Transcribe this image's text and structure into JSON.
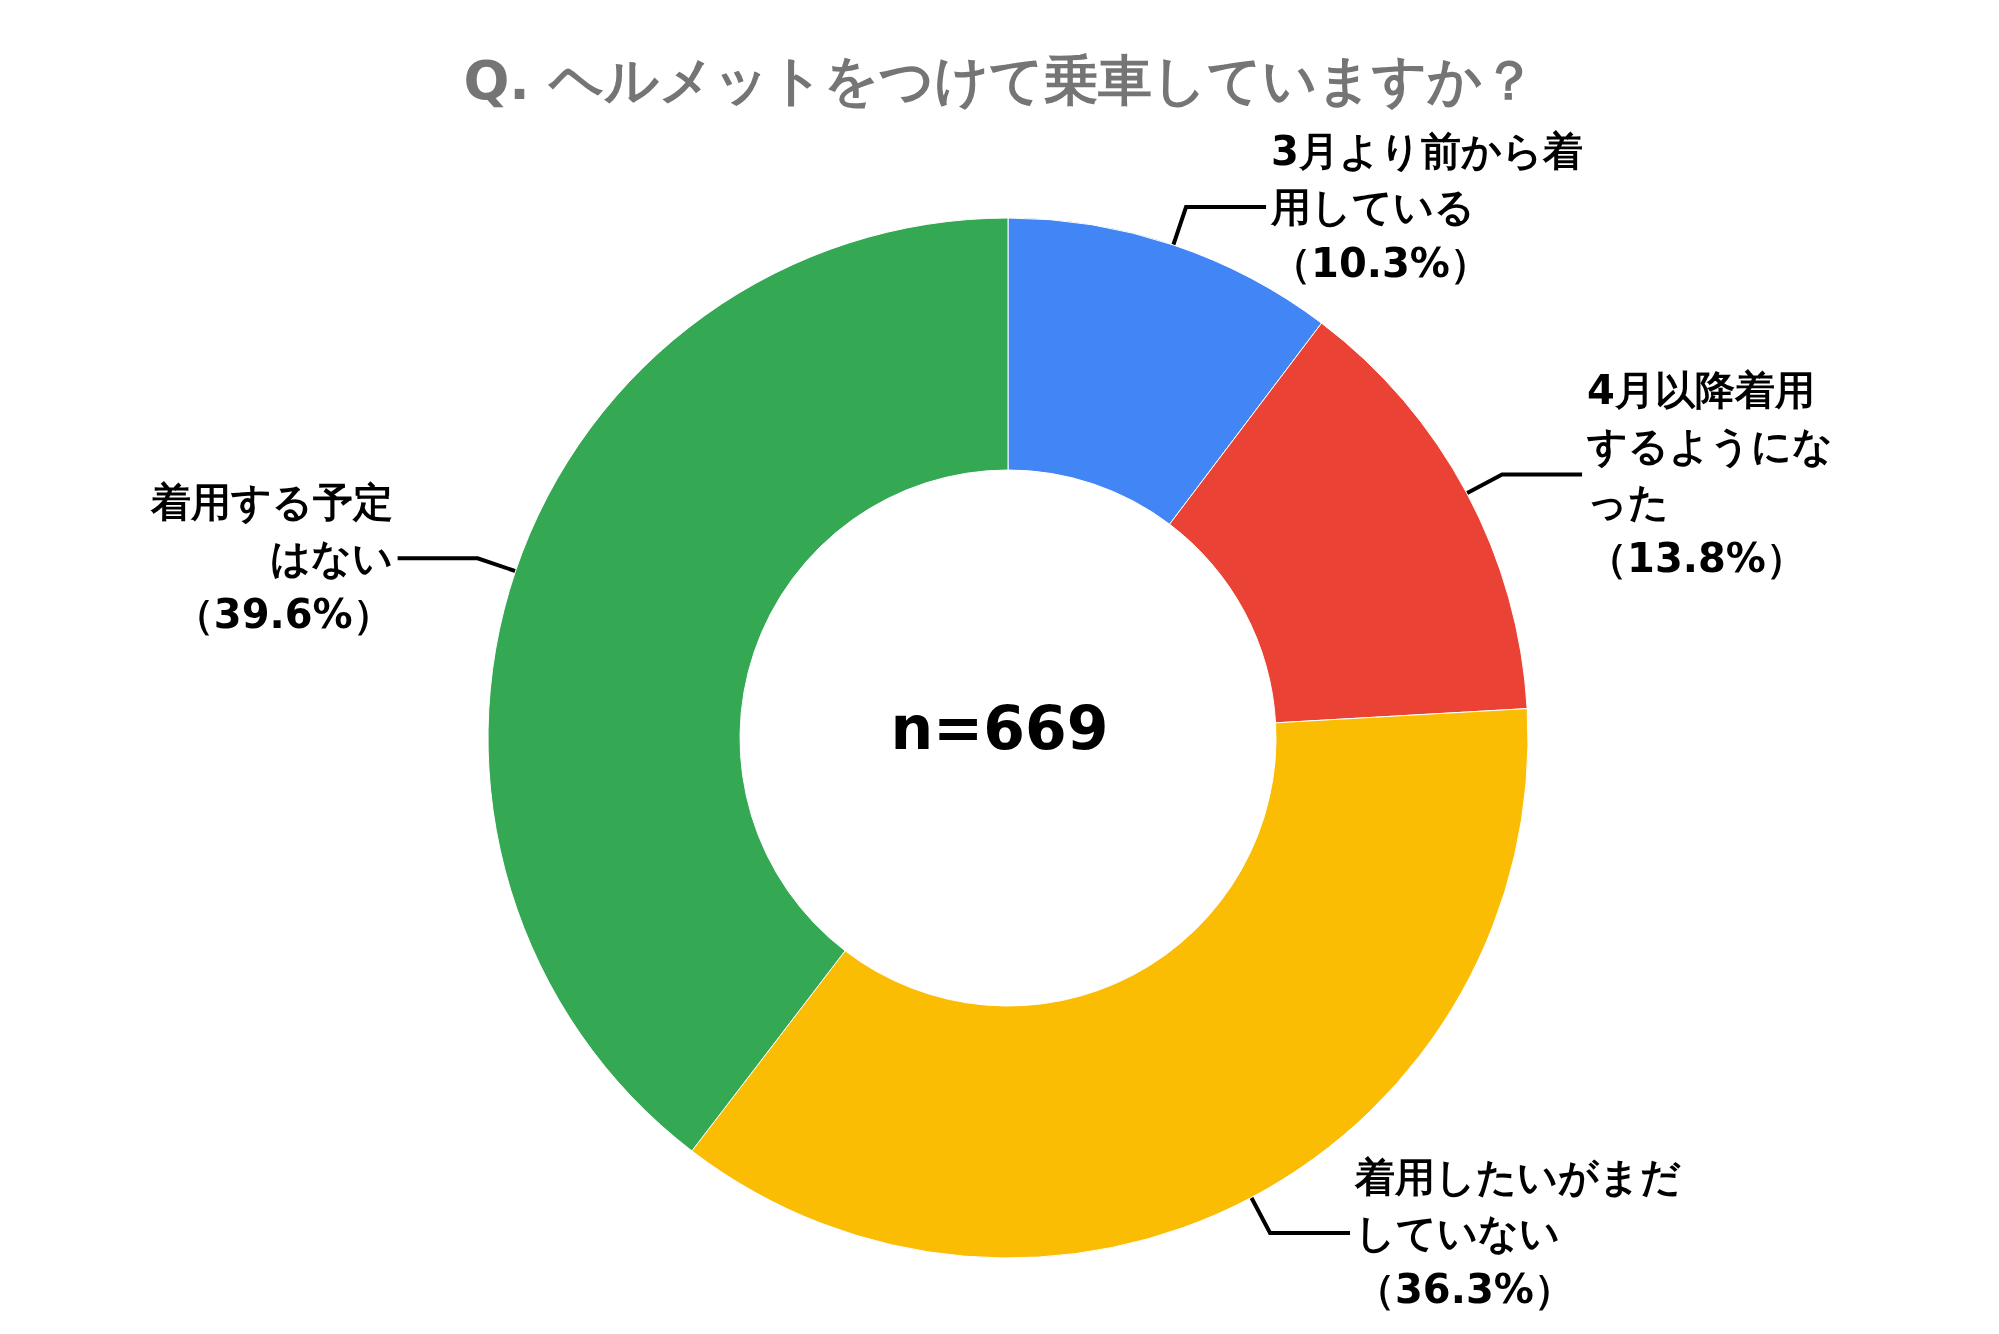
{
  "chart_data": {
    "type": "donut",
    "title": "Q. ヘルメットをつけて乗車していますか？",
    "categories": [
      "3月より前から着用している",
      "4月以降着用するようになった",
      "着用したいがまだしていない",
      "着用する予定はない"
    ],
    "values": [
      10.3,
      13.8,
      36.3,
      39.6
    ],
    "value_labels": [
      "（10.3%）",
      "（13.8%）",
      "（36.3%）",
      "（39.6%）"
    ],
    "colors": [
      "#4285f4",
      "#ea4335",
      "#fbbc04",
      "#34a853"
    ],
    "annotations": [
      "n=669"
    ]
  }
}
